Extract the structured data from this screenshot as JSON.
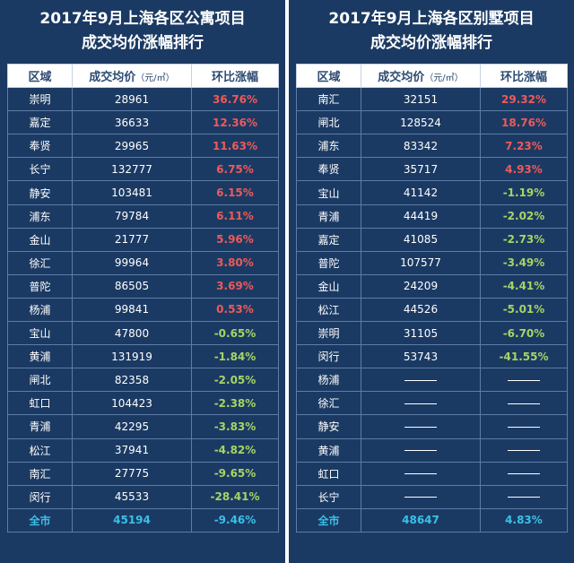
{
  "chart_data": [
    {
      "type": "table",
      "title_lines": [
        "2017年9月上海各区公寓项目",
        "成交均价涨幅排行"
      ],
      "headers": [
        "区域",
        "成交均价",
        "（元/㎡）",
        "环比涨幅"
      ],
      "rows": [
        {
          "region": "崇明",
          "price": "28961",
          "change": "36.76%",
          "dir": "up"
        },
        {
          "region": "嘉定",
          "price": "36633",
          "change": "12.36%",
          "dir": "up"
        },
        {
          "region": "奉贤",
          "price": "29965",
          "change": "11.63%",
          "dir": "up"
        },
        {
          "region": "长宁",
          "price": "132777",
          "change": "6.75%",
          "dir": "up"
        },
        {
          "region": "静安",
          "price": "103481",
          "change": "6.15%",
          "dir": "up"
        },
        {
          "region": "浦东",
          "price": "79784",
          "change": "6.11%",
          "dir": "up"
        },
        {
          "region": "金山",
          "price": "21777",
          "change": "5.96%",
          "dir": "up"
        },
        {
          "region": "徐汇",
          "price": "99964",
          "change": "3.80%",
          "dir": "up"
        },
        {
          "region": "普陀",
          "price": "86505",
          "change": "3.69%",
          "dir": "up"
        },
        {
          "region": "杨浦",
          "price": "99841",
          "change": "0.53%",
          "dir": "up"
        },
        {
          "region": "宝山",
          "price": "47800",
          "change": "-0.65%",
          "dir": "down"
        },
        {
          "region": "黄浦",
          "price": "131919",
          "change": "-1.84%",
          "dir": "down"
        },
        {
          "region": "闸北",
          "price": "82358",
          "change": "-2.05%",
          "dir": "down"
        },
        {
          "region": "虹口",
          "price": "104423",
          "change": "-2.38%",
          "dir": "down"
        },
        {
          "region": "青浦",
          "price": "42295",
          "change": "-3.83%",
          "dir": "down"
        },
        {
          "region": "松江",
          "price": "37941",
          "change": "-4.82%",
          "dir": "down"
        },
        {
          "region": "南汇",
          "price": "27775",
          "change": "-9.65%",
          "dir": "down"
        },
        {
          "region": "闵行",
          "price": "45533",
          "change": "-28.41%",
          "dir": "down"
        }
      ],
      "total": {
        "region": "全市",
        "price": "45194",
        "change": "-9.46%"
      }
    },
    {
      "type": "table",
      "title_lines": [
        "2017年9月上海各区别墅项目",
        "成交均价涨幅排行"
      ],
      "headers": [
        "区域",
        "成交均价",
        "（元/㎡）",
        "环比涨幅"
      ],
      "rows": [
        {
          "region": "南汇",
          "price": "32151",
          "change": "29.32%",
          "dir": "up"
        },
        {
          "region": "闸北",
          "price": "128524",
          "change": "18.76%",
          "dir": "up"
        },
        {
          "region": "浦东",
          "price": "83342",
          "change": "7.23%",
          "dir": "up"
        },
        {
          "region": "奉贤",
          "price": "35717",
          "change": "4.93%",
          "dir": "up"
        },
        {
          "region": "宝山",
          "price": "41142",
          "change": "-1.19%",
          "dir": "down"
        },
        {
          "region": "青浦",
          "price": "44419",
          "change": "-2.02%",
          "dir": "down"
        },
        {
          "region": "嘉定",
          "price": "41085",
          "change": "-2.73%",
          "dir": "down"
        },
        {
          "region": "普陀",
          "price": "107577",
          "change": "-3.49%",
          "dir": "down"
        },
        {
          "region": "金山",
          "price": "24209",
          "change": "-4.41%",
          "dir": "down"
        },
        {
          "region": "松江",
          "price": "44526",
          "change": "-5.01%",
          "dir": "down"
        },
        {
          "region": "崇明",
          "price": "31105",
          "change": "-6.70%",
          "dir": "down"
        },
        {
          "region": "闵行",
          "price": "53743",
          "change": "-41.55%",
          "dir": "down"
        },
        {
          "region": "杨浦",
          "price": null,
          "change": null,
          "dir": "flat"
        },
        {
          "region": "徐汇",
          "price": null,
          "change": null,
          "dir": "flat"
        },
        {
          "region": "静安",
          "price": null,
          "change": null,
          "dir": "flat"
        },
        {
          "region": "黄浦",
          "price": null,
          "change": null,
          "dir": "flat"
        },
        {
          "region": "虹口",
          "price": null,
          "change": null,
          "dir": "flat"
        },
        {
          "region": "长宁",
          "price": null,
          "change": null,
          "dir": "flat"
        }
      ],
      "total": {
        "region": "全市",
        "price": "48647",
        "change": "4.83%"
      }
    }
  ]
}
